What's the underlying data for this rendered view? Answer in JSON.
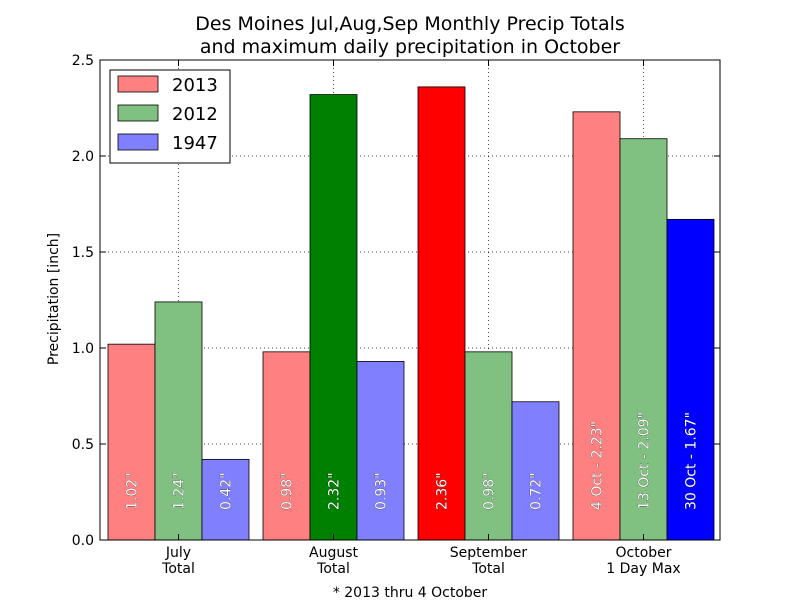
{
  "chart_data": {
    "type": "bar",
    "title_lines": [
      "Des Moines Jul,Aug,Sep Monthly Precip Totals",
      "and maximum daily precipitation in October"
    ],
    "ylabel": "Precipitation [inch]",
    "xlabel": "* 2013 thru 4 October",
    "ylim": [
      0,
      2.5
    ],
    "yticks": [
      "0.0",
      "0.5",
      "1.0",
      "1.5",
      "2.0",
      "2.5"
    ],
    "grid": true,
    "legend_position": "top-left",
    "categories": [
      [
        "July",
        "Total"
      ],
      [
        "August",
        "Total"
      ],
      [
        "September",
        "Total"
      ],
      [
        "October",
        "1 Day Max"
      ]
    ],
    "series": [
      {
        "name": "2013",
        "color": "#ff8080",
        "values": [
          1.02,
          0.98,
          2.36,
          2.23
        ],
        "labels": [
          "1.02\"",
          "0.98\"",
          "2.36\"",
          "4 Oct - 2.23\""
        ],
        "highlight": [
          false,
          false,
          true,
          false
        ],
        "highlight_color": "#ff0000"
      },
      {
        "name": "2012",
        "color": "#80c080",
        "values": [
          1.24,
          2.32,
          0.98,
          2.09
        ],
        "labels": [
          "1.24\"",
          "2.32\"",
          "0.98\"",
          "13 Oct - 2.09\""
        ],
        "highlight": [
          false,
          true,
          false,
          false
        ],
        "highlight_color": "#008000"
      },
      {
        "name": "1947",
        "color": "#8080ff",
        "values": [
          0.42,
          0.93,
          0.72,
          1.67
        ],
        "labels": [
          "0.42\"",
          "0.93\"",
          "0.72\"",
          "30 Oct - 1.67\""
        ],
        "highlight": [
          false,
          false,
          false,
          true
        ],
        "highlight_color": "#0000ff"
      }
    ]
  }
}
